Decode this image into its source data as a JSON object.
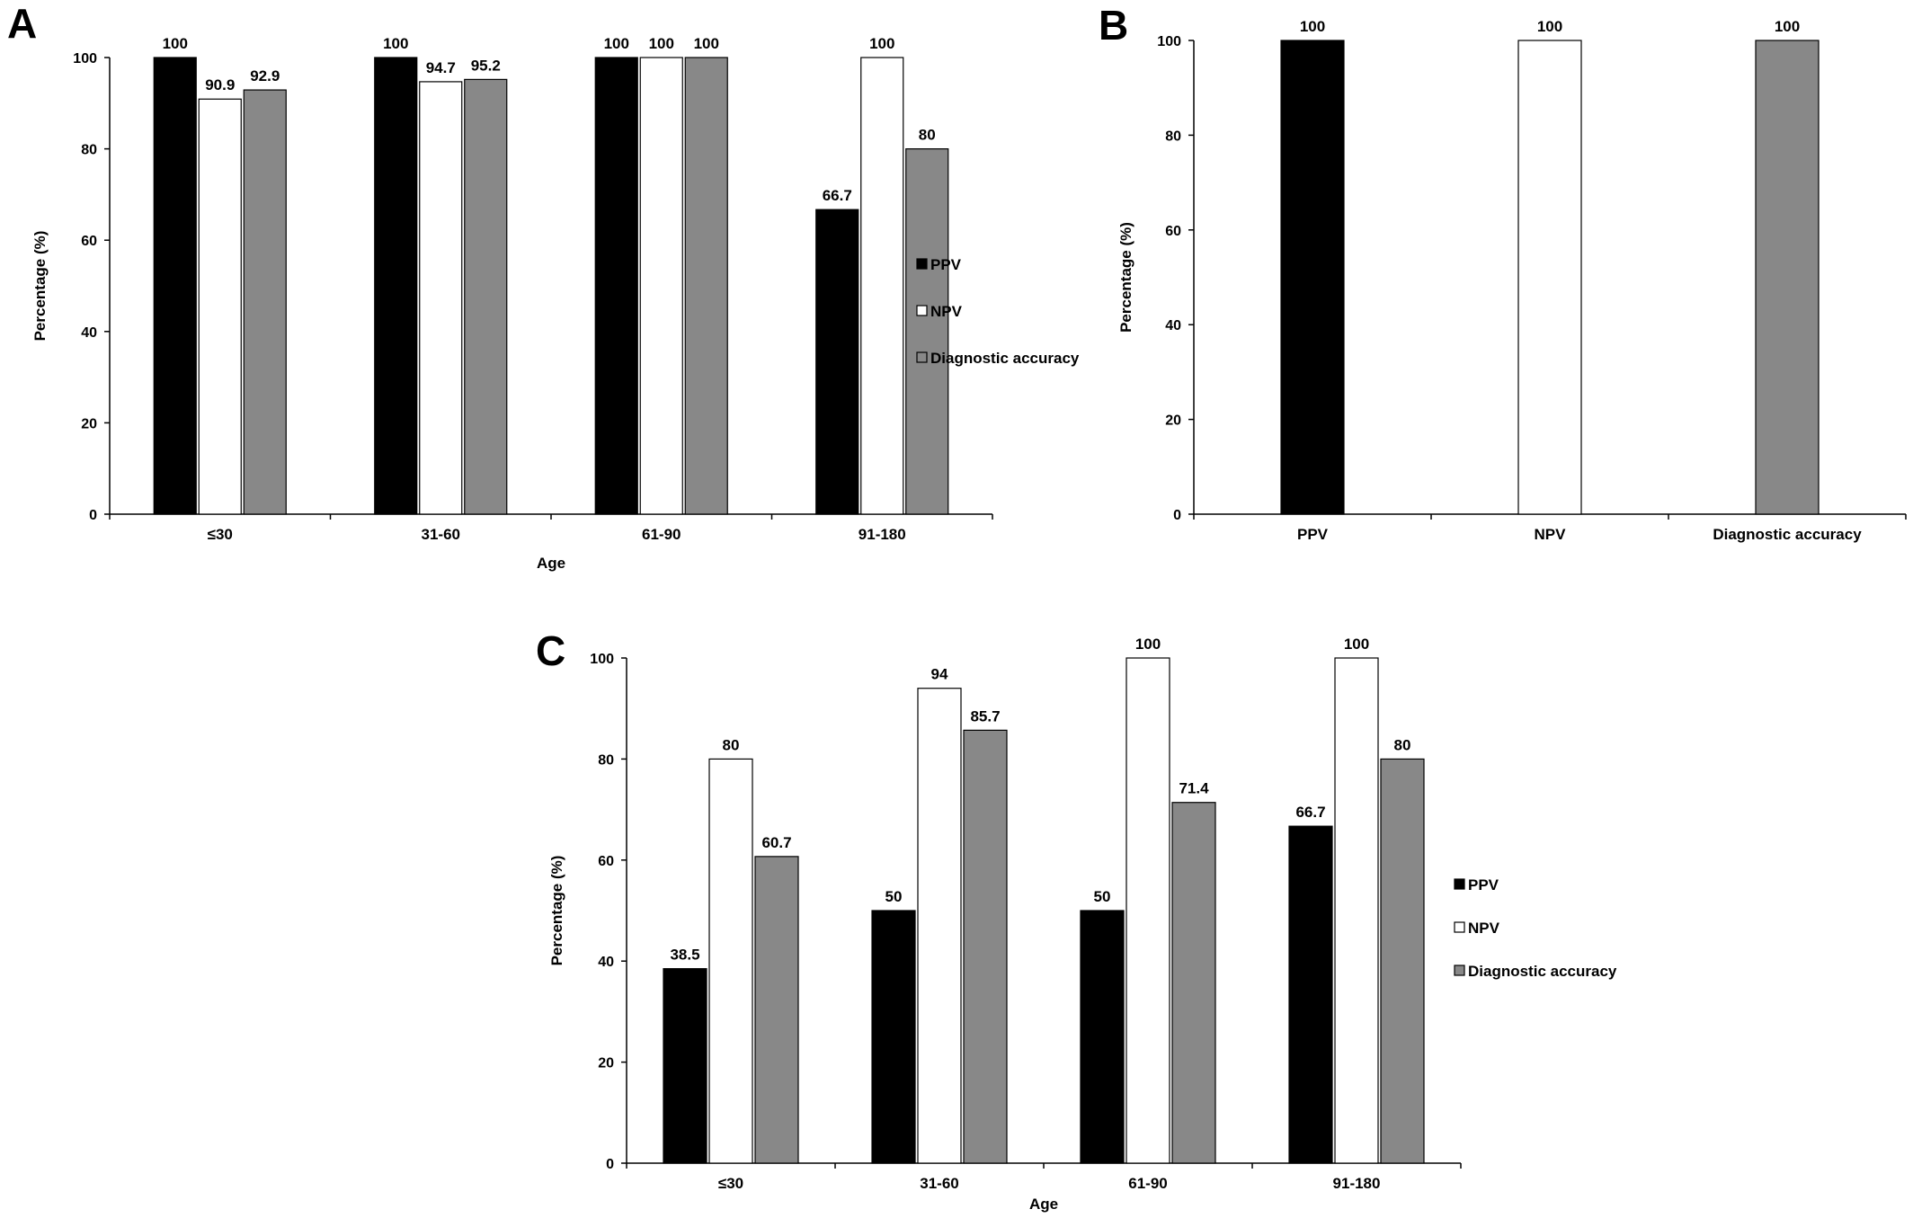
{
  "colors": {
    "PPV": "#000000",
    "NPV": "#ffffff",
    "Diagnostic accuracy": "#888888",
    "stroke": "#000000"
  },
  "chart_data": [
    {
      "panel": "A",
      "type": "bar",
      "xlabel": "Age",
      "ylabel": "Percentage (%)",
      "ylim": [
        0,
        100
      ],
      "yticks": [
        0,
        20,
        40,
        60,
        80,
        100
      ],
      "grid": false,
      "legend_position": "right",
      "categories": [
        "≤30",
        "31-60",
        "61-90",
        "91-180"
      ],
      "series": [
        {
          "name": "PPV",
          "values": [
            100,
            100,
            100,
            66.7
          ],
          "labels": [
            "100",
            "100",
            "100",
            "66.7"
          ]
        },
        {
          "name": "NPV",
          "values": [
            90.9,
            94.7,
            100,
            100
          ],
          "labels": [
            "90.9",
            "94.7",
            "100",
            "100"
          ]
        },
        {
          "name": "Diagnostic accuracy",
          "values": [
            92.9,
            95.2,
            100,
            80
          ],
          "labels": [
            "92.9",
            "95.2",
            "100",
            "80"
          ]
        }
      ]
    },
    {
      "panel": "B",
      "type": "bar",
      "xlabel": "",
      "ylabel": "Percentage (%)",
      "ylim": [
        0,
        100
      ],
      "yticks": [
        0,
        20,
        40,
        60,
        80,
        100
      ],
      "grid": false,
      "categories": [
        "PPV",
        "NPV",
        "Diagnostic accuracy"
      ],
      "values": [
        100,
        100,
        100
      ],
      "labels": [
        "100",
        "100",
        "100"
      ]
    },
    {
      "panel": "C",
      "type": "bar",
      "xlabel": "Age",
      "ylabel": "Percentage (%)",
      "ylim": [
        0,
        100
      ],
      "yticks": [
        0,
        20,
        40,
        60,
        80,
        100
      ],
      "grid": false,
      "legend_position": "right",
      "categories": [
        "≤30",
        "31-60",
        "61-90",
        "91-180"
      ],
      "series": [
        {
          "name": "PPV",
          "values": [
            38.5,
            50,
            50,
            66.7
          ],
          "labels": [
            "38.5",
            "50",
            "50",
            "66.7"
          ]
        },
        {
          "name": "NPV",
          "values": [
            80,
            94,
            100,
            100
          ],
          "labels": [
            "80",
            "94",
            "100",
            "100"
          ]
        },
        {
          "name": "Diagnostic accuracy",
          "values": [
            60.7,
            85.7,
            71.4,
            80
          ],
          "labels": [
            "60.7",
            "85.7",
            "71.4",
            "80"
          ]
        }
      ]
    }
  ]
}
